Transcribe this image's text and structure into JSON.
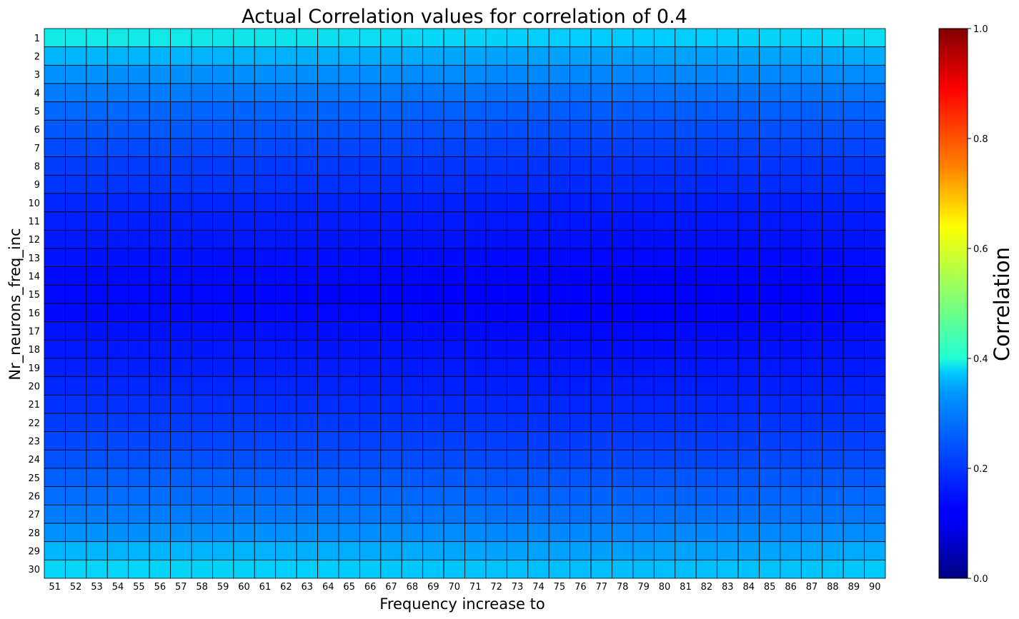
{
  "chart_data": {
    "type": "heatmap",
    "title": "Actual Correlation values for correlation of 0.4",
    "xlabel": "Frequency increase to",
    "ylabel": "Nr_neurons_freq_inc",
    "x": [
      51,
      52,
      53,
      54,
      55,
      56,
      57,
      58,
      59,
      60,
      61,
      62,
      63,
      64,
      65,
      66,
      67,
      68,
      69,
      70,
      71,
      72,
      73,
      74,
      75,
      76,
      77,
      78,
      79,
      80,
      81,
      82,
      83,
      84,
      85,
      86,
      87,
      88,
      89,
      90
    ],
    "y": [
      1,
      2,
      3,
      4,
      5,
      6,
      7,
      8,
      9,
      10,
      11,
      12,
      13,
      14,
      15,
      16,
      17,
      18,
      19,
      20,
      21,
      22,
      23,
      24,
      25,
      26,
      27,
      28,
      29,
      30
    ],
    "row_values": [
      0.39,
      0.36,
      0.33,
      0.3,
      0.27,
      0.25,
      0.23,
      0.21,
      0.2,
      0.18,
      0.17,
      0.16,
      0.15,
      0.14,
      0.135,
      0.14,
      0.15,
      0.16,
      0.17,
      0.18,
      0.195,
      0.21,
      0.225,
      0.24,
      0.26,
      0.28,
      0.3,
      0.33,
      0.36,
      0.38
    ],
    "column_profile": "values are slightly higher at the left and right edges and lowest around columns 72-80 (row value minus up to ~0.015)",
    "colormap": "jet",
    "colorbar": {
      "label": "Correlation",
      "range": [
        0.0,
        1.0
      ],
      "ticks": [
        "0.0",
        "0.2",
        "0.4",
        "0.6",
        "0.8",
        "1.0"
      ]
    },
    "grid_lines": true,
    "grid_color": "#000000"
  }
}
